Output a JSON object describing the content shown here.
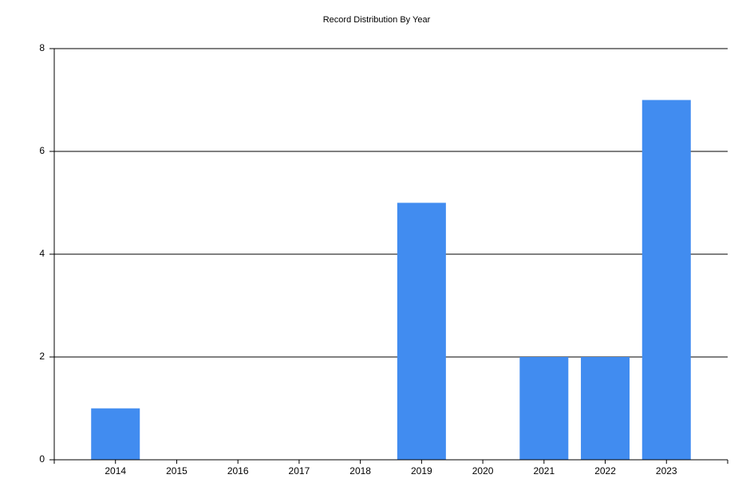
{
  "chart_data": {
    "type": "bar",
    "title": "Record Distribution By Year",
    "categories": [
      "2014",
      "2015",
      "2016",
      "2017",
      "2018",
      "2019",
      "2020",
      "2021",
      "2022",
      "2023"
    ],
    "values": [
      1,
      0,
      0,
      0,
      0,
      5,
      0,
      2,
      2,
      7
    ],
    "color": "#418cf0",
    "ylim": [
      0,
      8
    ],
    "yticks": [
      0,
      2,
      4,
      6,
      8
    ],
    "grid": true
  }
}
